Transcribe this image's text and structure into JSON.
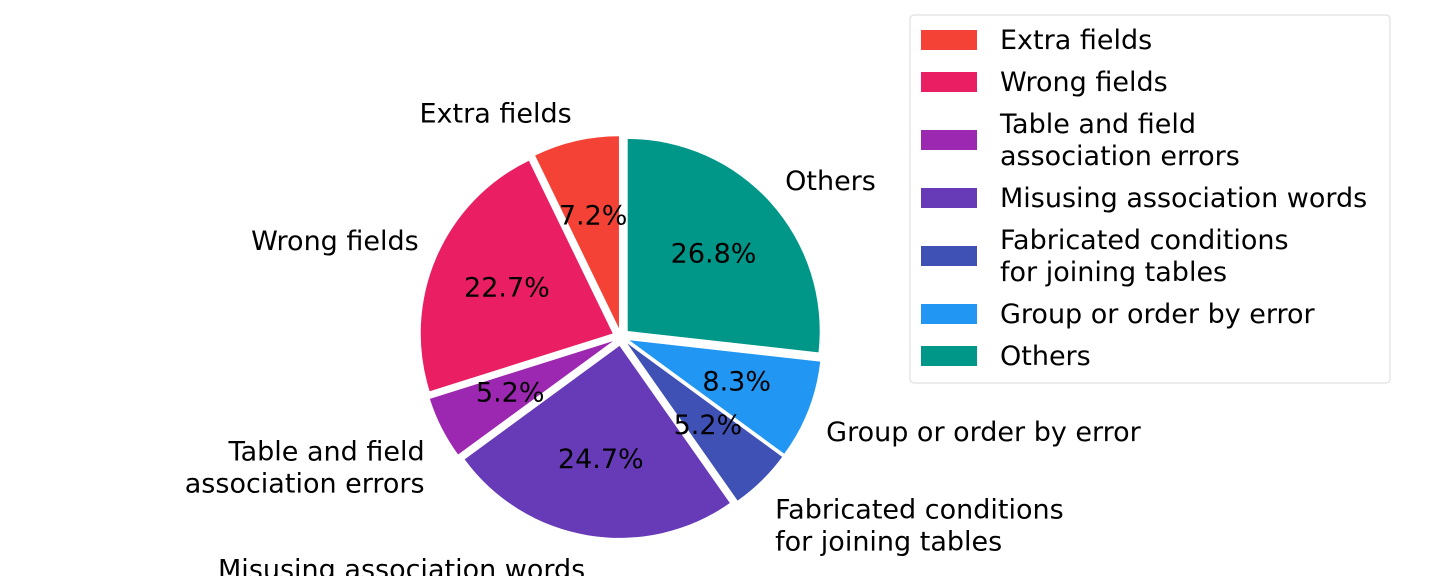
{
  "chart_data": {
    "type": "pie",
    "slices": [
      {
        "label": "Extra fields",
        "value": 7.2,
        "pct_label": "7.2%",
        "color": "#F44336",
        "outer_lines": [
          "Extra fields"
        ],
        "legend_lines": [
          "Extra fields"
        ]
      },
      {
        "label": "Wrong fields",
        "value": 22.7,
        "pct_label": "22.7%",
        "color": "#E91E63",
        "outer_lines": [
          "Wrong fields"
        ],
        "legend_lines": [
          "Wrong fields"
        ]
      },
      {
        "label": "Table and field association errors",
        "value": 5.2,
        "pct_label": "5.2%",
        "color": "#9C27B0",
        "outer_lines": [
          "Table and field",
          "association errors"
        ],
        "legend_lines": [
          "Table and field",
          "association errors"
        ]
      },
      {
        "label": "Misusing association words",
        "value": 24.7,
        "pct_label": "24.7%",
        "color": "#673AB7",
        "outer_lines": [
          "Misusing association words"
        ],
        "legend_lines": [
          "Misusing association words"
        ]
      },
      {
        "label": "Fabricated conditions for joining tables",
        "value": 5.2,
        "pct_label": "5.2%",
        "color": "#3F51B5",
        "outer_lines": [
          "Fabricated conditions",
          "for joining tables"
        ],
        "legend_lines": [
          "Fabricated conditions",
          "for joining tables"
        ]
      },
      {
        "label": "Group or order by error",
        "value": 8.3,
        "pct_label": "8.3%",
        "color": "#2196F3",
        "outer_lines": [
          "Group or order by error"
        ],
        "legend_lines": [
          "Group or order by error"
        ]
      },
      {
        "label": "Others",
        "value": 26.8,
        "pct_label": "26.8%",
        "color": "#009688",
        "outer_lines": [
          "Others"
        ],
        "legend_lines": [
          "Others"
        ]
      }
    ],
    "start_angle_deg": 90,
    "direction": "counterclockwise",
    "exploded": true,
    "legend_position": "top-right"
  }
}
